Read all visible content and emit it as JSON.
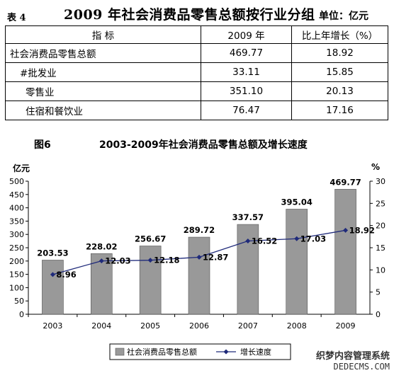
{
  "table": {
    "caption": "表 4",
    "title": "2009 年社会消费品零售总额按行业分组",
    "unit": "单位：亿元",
    "headers": [
      "指        标",
      "2009 年",
      "比上年增长（%）"
    ],
    "rows": [
      {
        "label": "社会消费品零售总额",
        "value": "469.77",
        "growth": "18.92"
      },
      {
        "label": "#批发业",
        "value": "33.11",
        "growth": "15.85"
      },
      {
        "label": "零售业",
        "value": "351.10",
        "growth": "20.13"
      },
      {
        "label": "住宿和餐饮业",
        "value": "76.47",
        "growth": "17.16"
      }
    ]
  },
  "figure": {
    "caption": "图6",
    "title": "2003-2009年社会消费品零售总额及增长速度"
  },
  "chart_data": {
    "type": "bar",
    "categories": [
      "2003",
      "2004",
      "2005",
      "2006",
      "2007",
      "2008",
      "2009"
    ],
    "series": [
      {
        "name": "社会消费品零售总额",
        "type": "bar",
        "axis": "left",
        "values": [
          203.53,
          228.02,
          256.67,
          289.72,
          337.57,
          395.04,
          469.77
        ],
        "labels": [
          "203.53",
          "228.02",
          "256.67",
          "289.72",
          "337.57",
          "395.04",
          "469.77"
        ],
        "color": "#999999"
      },
      {
        "name": "增长速度",
        "type": "line",
        "axis": "right",
        "values": [
          8.96,
          12.03,
          12.18,
          12.87,
          16.52,
          17.03,
          18.92
        ],
        "labels": [
          "8.96",
          "12.03",
          "12.18",
          "12.87",
          "16.52",
          "17.03",
          "18.92"
        ],
        "color": "#1f2a7a"
      }
    ],
    "ylabel_left": "亿元",
    "ylabel_right": "%",
    "ylim_left": [
      0,
      500
    ],
    "yticks_left": [
      "0",
      "50",
      "100",
      "150",
      "200",
      "250",
      "300",
      "350",
      "400",
      "450",
      "500"
    ],
    "ylim_right": [
      0,
      30
    ],
    "yticks_right": [
      "0",
      "5",
      "10",
      "15",
      "20",
      "25",
      "30"
    ],
    "grid": false,
    "legend": "bottom"
  },
  "watermark": {
    "line1": "织梦内容管理系统",
    "line2": "DEDECMS.COM"
  }
}
